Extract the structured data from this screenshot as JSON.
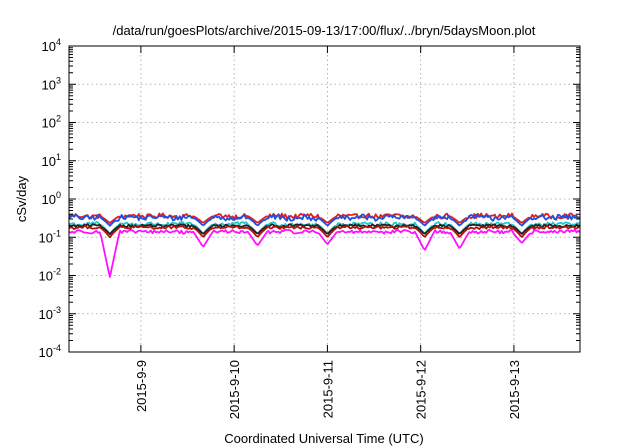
{
  "chart_data": {
    "type": "line",
    "title": "/data/run/goesPlots/archive/2015-09-13/17:00/flux/../bryn/5daysMoon.plot",
    "xlabel": "Coordinated Universal Time (UTC)",
    "ylabel": "cSv/day",
    "yscale": "log",
    "ylim": [
      0.0001,
      10000
    ],
    "xlim": [
      "2015-09-08 05:30",
      "2015-09-13 17:00"
    ],
    "grid": true,
    "y_ticks": [
      {
        "base": "10",
        "exp": "-4"
      },
      {
        "base": "10",
        "exp": "-3"
      },
      {
        "base": "10",
        "exp": "-2"
      },
      {
        "base": "10",
        "exp": "-1"
      },
      {
        "base": "10",
        "exp": "0"
      },
      {
        "base": "10",
        "exp": "1"
      },
      {
        "base": "10",
        "exp": "2"
      },
      {
        "base": "10",
        "exp": "3"
      },
      {
        "base": "10",
        "exp": "4"
      }
    ],
    "x_ticks": [
      "2015-9-9",
      "2015-9-10",
      "2015-9-11",
      "2015-9-12",
      "2015-9-13"
    ],
    "x_tick_dates": [
      "2015-09-09",
      "2015-09-10",
      "2015-09-11",
      "2015-09-12",
      "2015-09-13"
    ],
    "series": [
      {
        "color": "#e02020",
        "baseline": 0.36,
        "noise": 0.14,
        "dip_depth": 0.35
      },
      {
        "color": "#2050e0",
        "baseline": 0.33,
        "noise": 0.16,
        "dip_depth": 0.4
      },
      {
        "color": "#20c8c8",
        "baseline": 0.22,
        "noise": 0.12,
        "dip_depth": 0.45
      },
      {
        "color": "#202020",
        "baseline": 0.2,
        "noise": 0.08,
        "dip_depth": 0.4
      },
      {
        "color": "#b01010",
        "baseline": 0.18,
        "noise": 0.08,
        "dip_depth": 0.45
      },
      {
        "color": "#ff10ff",
        "baseline": 0.14,
        "noise": 0.1,
        "dip_depth": 0.6
      }
    ],
    "dips": [
      {
        "time": "2015-09-08 16:00",
        "value": 0.009
      },
      {
        "time": "2015-09-09 16:00",
        "value": 0.055
      },
      {
        "time": "2015-09-10 06:00",
        "value": 0.06
      },
      {
        "time": "2015-09-11 00:00",
        "value": 0.065
      },
      {
        "time": "2015-09-12 01:00",
        "value": 0.045
      },
      {
        "time": "2015-09-12 10:00",
        "value": 0.05
      },
      {
        "time": "2015-09-13 02:00",
        "value": 0.07
      }
    ]
  }
}
